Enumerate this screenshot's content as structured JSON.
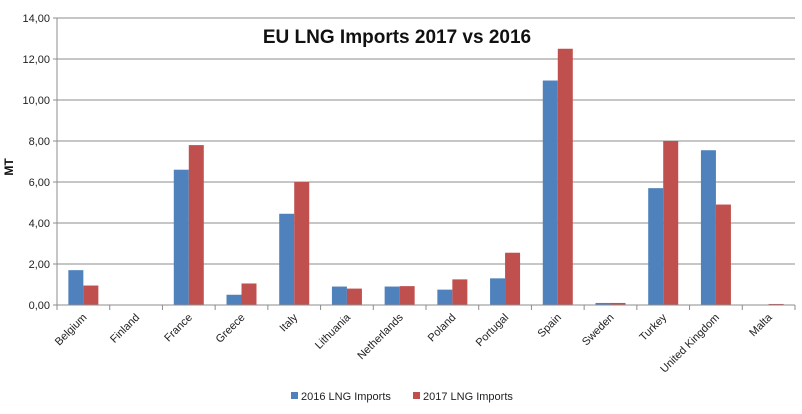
{
  "chart_data": {
    "type": "bar",
    "title": "EU LNG Imports 2017 vs 2016",
    "xlabel": "",
    "ylabel": "MT",
    "ylim": [
      0,
      14
    ],
    "ytick_step": 2,
    "ytick_labels": [
      "0,00",
      "2,00",
      "4,00",
      "6,00",
      "8,00",
      "10,00",
      "12,00",
      "14,00"
    ],
    "grid": true,
    "legend_position": "bottom",
    "categories": [
      "Belgium",
      "Finland",
      "France",
      "Greece",
      "Italy",
      "Lithuania",
      "Netherlands",
      "Poland",
      "Portugal",
      "Spain",
      "Sweden",
      "Turkey",
      "United Kingdom",
      "Malta"
    ],
    "series": [
      {
        "name": "2016 LNG Imports",
        "color": "#4F81BD",
        "values": [
          1.7,
          0.0,
          6.6,
          0.5,
          4.45,
          0.9,
          0.9,
          0.75,
          1.3,
          10.95,
          0.1,
          5.7,
          7.55,
          0.0
        ]
      },
      {
        "name": "2017 LNG Imports",
        "color": "#C0504D",
        "values": [
          0.95,
          0.0,
          7.8,
          1.05,
          6.0,
          0.8,
          0.92,
          1.25,
          2.55,
          12.5,
          0.1,
          8.0,
          4.9,
          0.05
        ]
      }
    ]
  }
}
